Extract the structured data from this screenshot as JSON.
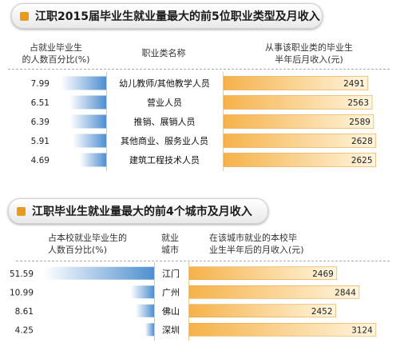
{
  "chart_data": [
    {
      "type": "bar",
      "title": "江职2015届毕业生就业量最大的前5位职业类型及月收入",
      "left_header": "占就业毕业生\n的人数百分比(%)",
      "middle_header": "职业类名称",
      "right_header": "从事该职业类的毕业生\n半年后月收入(元)",
      "categories": [
        "幼儿教师/其他教学人员",
        "营业人员",
        "推销、展销人员",
        "其他商业、服务业人员",
        "建筑工程技术人员"
      ],
      "series": [
        {
          "name": "占就业毕业生的人数百分比(%)",
          "values": [
            "7.99",
            "6.51",
            "6.39",
            "5.91",
            "4.69"
          ]
        },
        {
          "name": "从事该职业类的毕业生半年后月收入(元)",
          "values": [
            "2491",
            "2563",
            "2589",
            "2628",
            "2625"
          ]
        }
      ],
      "left_max": 8.5,
      "right_max": 2700
    },
    {
      "type": "bar",
      "title": "江职毕业生就业量最大的前4个城市及月收入",
      "left_header": "占本校就业毕业生的\n人数百分比(%)",
      "middle_header": "就业\n城市",
      "right_header": "在该城市就业的本校毕\n业生半年后的月收入(元)",
      "categories": [
        "江门",
        "广州",
        "佛山",
        "深圳"
      ],
      "series": [
        {
          "name": "占本校就业毕业生的人数百分比(%)",
          "values": [
            "51.59",
            "10.99",
            "8.61",
            "4.25"
          ]
        },
        {
          "name": "在该城市就业的本校毕业生半年后的月收入(元)",
          "values": [
            "2469",
            "2844",
            "2452",
            "3124"
          ]
        }
      ],
      "left_max": 54,
      "right_max": 3500
    }
  ]
}
